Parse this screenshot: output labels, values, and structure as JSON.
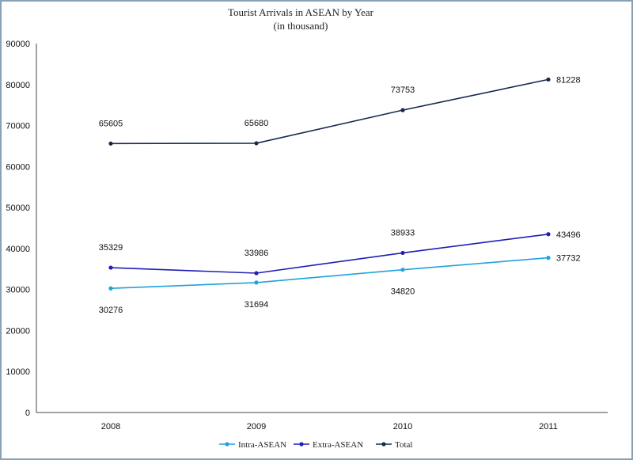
{
  "chart_data": {
    "type": "line",
    "title": "Tourist Arrivals in ASEAN by Year",
    "subtitle": "(in thousand)",
    "categories": [
      "2008",
      "2009",
      "2010",
      "2011"
    ],
    "ylim": [
      0,
      90000
    ],
    "yticks": [
      "0",
      "10000",
      "20000",
      "30000",
      "40000",
      "50000",
      "60000",
      "70000",
      "80000",
      "90000"
    ],
    "grid": false,
    "legend_position": "bottom",
    "series": [
      {
        "name": "Intra-ASEAN",
        "color": "#1ea3dc",
        "values": [
          30276,
          31694,
          34820,
          37732
        ],
        "labels": [
          "30276",
          "31694",
          "34820",
          "37732"
        ],
        "label_pos": [
          "below",
          "below",
          "below",
          "right"
        ]
      },
      {
        "name": "Extra-ASEAN",
        "color": "#1f1fb4",
        "values": [
          35329,
          33986,
          38933,
          43496
        ],
        "labels": [
          "35329",
          "33986",
          "38933",
          "43496"
        ],
        "label_pos": [
          "above",
          "above",
          "above",
          "right"
        ]
      },
      {
        "name": "Total",
        "color": "#15284f",
        "values": [
          65605,
          65680,
          73753,
          81228
        ],
        "labels": [
          "65605",
          "65680",
          "73753",
          "81228"
        ],
        "label_pos": [
          "above",
          "above",
          "above",
          "right"
        ]
      }
    ]
  }
}
